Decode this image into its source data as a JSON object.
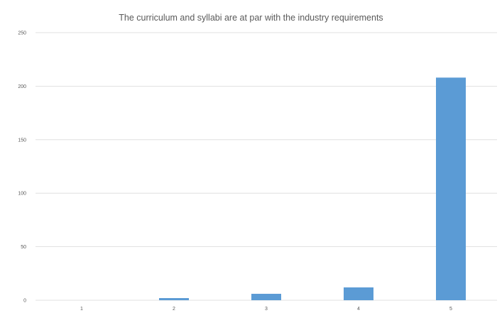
{
  "chart_data": {
    "type": "bar",
    "title": "The curriculum and syllabi are at par with the industry requirements",
    "xlabel": "",
    "ylabel": "",
    "categories": [
      "1",
      "2",
      "3",
      "4",
      "5"
    ],
    "values": [
      0,
      2,
      6,
      12,
      208
    ],
    "ylim": [
      0,
      250
    ],
    "yticks": [
      0,
      50,
      100,
      150,
      200,
      250
    ],
    "grid": true,
    "legend": "none",
    "bar_color": "#5b9bd5",
    "grid_color": "#d9d9d9"
  }
}
